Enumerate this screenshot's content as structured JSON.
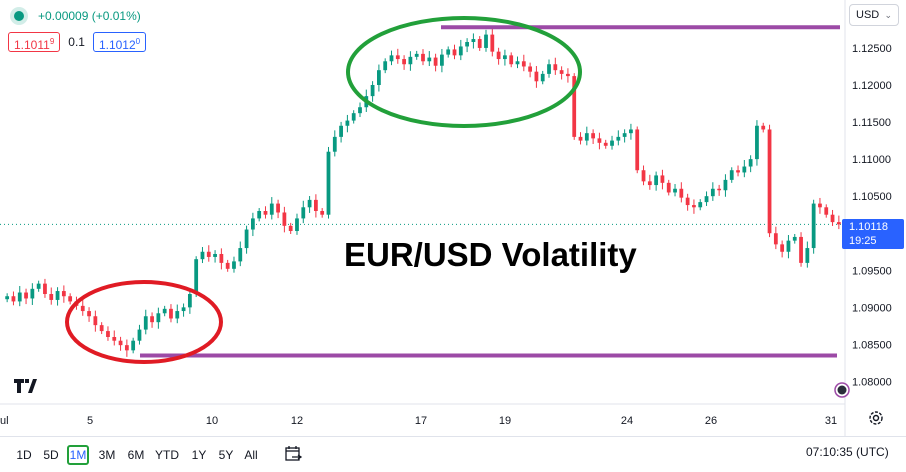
{
  "header": {
    "change_text": "+0.00009 (+0.01%)",
    "sell_price": "1.1011",
    "sell_sup": "9",
    "spread": "0.1",
    "buy_price": "1.1012",
    "buy_sup": "0",
    "currency": "USD"
  },
  "overlay": {
    "title": "EUR/USD Volatility"
  },
  "price_badge": {
    "price": "1.10118",
    "countdown": "19:25"
  },
  "toolbar": {
    "ranges": [
      "1D",
      "5D",
      "1M",
      "3M",
      "6M",
      "YTD",
      "1Y",
      "5Y",
      "All"
    ],
    "active_range": "1M",
    "time": "07:10:35 (UTC)",
    "calendar_icon": "calendar-arrows-icon",
    "settings_icon": "gear-icon"
  },
  "colors": {
    "up": "#089981",
    "down": "#f23645",
    "accent": "#2962ff",
    "annotation_purple": "#9c4aa6",
    "annotation_green": "#22a03a",
    "annotation_red": "#e01b24"
  },
  "chart_data": {
    "type": "line",
    "title": "",
    "x_tick_labels": [
      "ul",
      "5",
      "10",
      "12",
      "17",
      "19",
      "24",
      "26",
      "31"
    ],
    "y_tick_labels": [
      "1.12500",
      "1.12000",
      "1.11500",
      "1.11000",
      "1.10500",
      "1.10000",
      "1.09500",
      "1.09000",
      "1.08500",
      "1.08000"
    ],
    "ylim": [
      1.0775,
      1.1285
    ],
    "series": [
      {
        "values": [
          1.0915,
          1.0908,
          1.092,
          1.0912,
          1.0925,
          1.0932,
          1.0918,
          1.091,
          1.0922,
          1.0915,
          1.0908,
          1.0902,
          1.0895,
          1.0888,
          1.0876,
          1.0868,
          1.086,
          1.0855,
          1.0849,
          1.0842,
          1.0855,
          1.087,
          1.0888,
          1.088,
          1.0892,
          1.0898,
          1.0885,
          1.0895,
          1.09,
          1.0918,
          1.0965,
          1.0975,
          1.0968,
          1.0972,
          1.096,
          1.0952,
          1.0962,
          1.098,
          1.1005,
          1.102,
          1.103,
          1.1025,
          1.104,
          1.1028,
          1.101,
          1.1003,
          1.102,
          1.1035,
          1.1045,
          1.103,
          1.1025,
          1.111,
          1.113,
          1.1145,
          1.1152,
          1.1162,
          1.117,
          1.1185,
          1.12,
          1.122,
          1.1232,
          1.124,
          1.1235,
          1.1228,
          1.1238,
          1.1242,
          1.1232,
          1.1237,
          1.1226,
          1.1241,
          1.1248,
          1.124,
          1.1252,
          1.1258,
          1.1262,
          1.125,
          1.1268,
          1.1245,
          1.1235,
          1.124,
          1.1228,
          1.1232,
          1.1225,
          1.1218,
          1.1205,
          1.1215,
          1.1228,
          1.122,
          1.1215,
          1.1212,
          1.113,
          1.1125,
          1.1135,
          1.1128,
          1.1122,
          1.1118,
          1.1125,
          1.113,
          1.1135,
          1.114,
          1.1085,
          1.107,
          1.1065,
          1.1078,
          1.1068,
          1.1055,
          1.106,
          1.1048,
          1.1038,
          1.1035,
          1.1042,
          1.105,
          1.106,
          1.1058,
          1.1072,
          1.1085,
          1.1082,
          1.109,
          1.11,
          1.1145,
          1.114,
          1.1,
          1.0985,
          1.0975,
          1.099,
          1.0995,
          1.096,
          1.098,
          1.104,
          1.1035,
          1.1025,
          1.1015,
          1.1012
        ]
      }
    ],
    "annotations": [
      {
        "type": "horizontal_line",
        "price": 1.1278,
        "color": "#9c4aa6"
      },
      {
        "type": "horizontal_line",
        "price": 1.0835,
        "color": "#9c4aa6"
      },
      {
        "type": "ellipse",
        "color": "#22a03a",
        "label": "high range"
      },
      {
        "type": "ellipse",
        "color": "#e01b24",
        "label": "low range"
      }
    ]
  }
}
